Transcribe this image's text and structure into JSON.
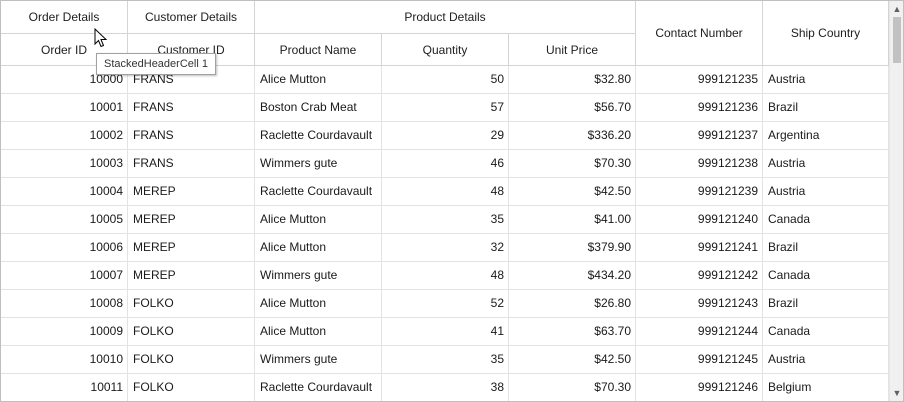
{
  "stacked_headers": [
    {
      "label": "Order Details"
    },
    {
      "label": "Customer Details"
    },
    {
      "label": "Product Details"
    }
  ],
  "columns": [
    {
      "label": "Order ID"
    },
    {
      "label": "Customer ID"
    },
    {
      "label": "Product Name"
    },
    {
      "label": "Quantity"
    },
    {
      "label": "Unit Price"
    },
    {
      "label": "Contact Number"
    },
    {
      "label": "Ship Country"
    }
  ],
  "rows": [
    [
      "10000",
      "FRANS",
      "Alice Mutton",
      "50",
      "$32.80",
      "999121235",
      "Austria"
    ],
    [
      "10001",
      "FRANS",
      "Boston Crab Meat",
      "57",
      "$56.70",
      "999121236",
      "Brazil"
    ],
    [
      "10002",
      "FRANS",
      "Raclette Courdavault",
      "29",
      "$336.20",
      "999121237",
      "Argentina"
    ],
    [
      "10003",
      "FRANS",
      "Wimmers gute",
      "46",
      "$70.30",
      "999121238",
      "Austria"
    ],
    [
      "10004",
      "MEREP",
      "Raclette Courdavault",
      "48",
      "$42.50",
      "999121239",
      "Austria"
    ],
    [
      "10005",
      "MEREP",
      "Alice Mutton",
      "35",
      "$41.00",
      "999121240",
      "Canada"
    ],
    [
      "10006",
      "MEREP",
      "Alice Mutton",
      "32",
      "$379.90",
      "999121241",
      "Brazil"
    ],
    [
      "10007",
      "MEREP",
      "Wimmers gute",
      "48",
      "$434.20",
      "999121242",
      "Canada"
    ],
    [
      "10008",
      "FOLKO",
      "Alice Mutton",
      "52",
      "$26.80",
      "999121243",
      "Brazil"
    ],
    [
      "10009",
      "FOLKO",
      "Alice Mutton",
      "41",
      "$63.70",
      "999121244",
      "Canada"
    ],
    [
      "10010",
      "FOLKO",
      "Wimmers gute",
      "35",
      "$42.50",
      "999121245",
      "Austria"
    ],
    [
      "10011",
      "FOLKO",
      "Raclette Courdavault",
      "38",
      "$70.30",
      "999121246",
      "Belgium"
    ]
  ],
  "tooltip": {
    "text": "StackedHeaderCell 1"
  },
  "icons": {
    "scroll_up": "chevron-up-icon",
    "scroll_down": "chevron-down-icon",
    "cursor": "mouse-pointer-icon"
  }
}
